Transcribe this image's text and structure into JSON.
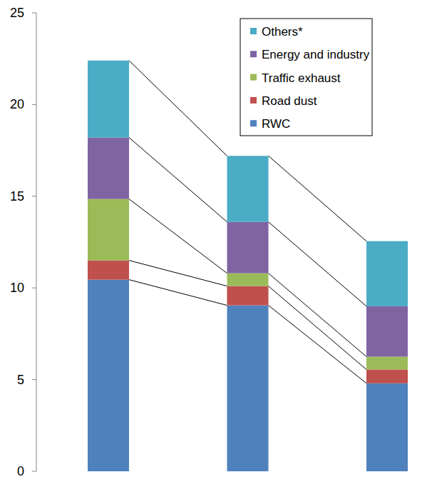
{
  "chart_data": {
    "type": "bar",
    "stacked": true,
    "categories": [
      null,
      null,
      null
    ],
    "series": [
      {
        "name": "RWC",
        "color": "#4f81bd",
        "values": [
          10.45,
          9.05,
          4.8
        ]
      },
      {
        "name": "Road dust",
        "color": "#c0504d",
        "values": [
          1.05,
          1.05,
          0.75
        ]
      },
      {
        "name": "Traffic exhaust",
        "color": "#9bbb59",
        "values": [
          3.35,
          0.7,
          0.7
        ]
      },
      {
        "name": "Energy and industry",
        "color": "#8064a2",
        "values": [
          3.35,
          2.8,
          2.75
        ]
      },
      {
        "name": "Others*",
        "color": "#4bacc6",
        "values": [
          4.2,
          3.6,
          3.55
        ]
      }
    ],
    "ylim": [
      0,
      25
    ],
    "yticks": [
      0,
      5,
      10,
      15,
      20,
      25
    ],
    "grid": false,
    "legend": "top-right"
  }
}
